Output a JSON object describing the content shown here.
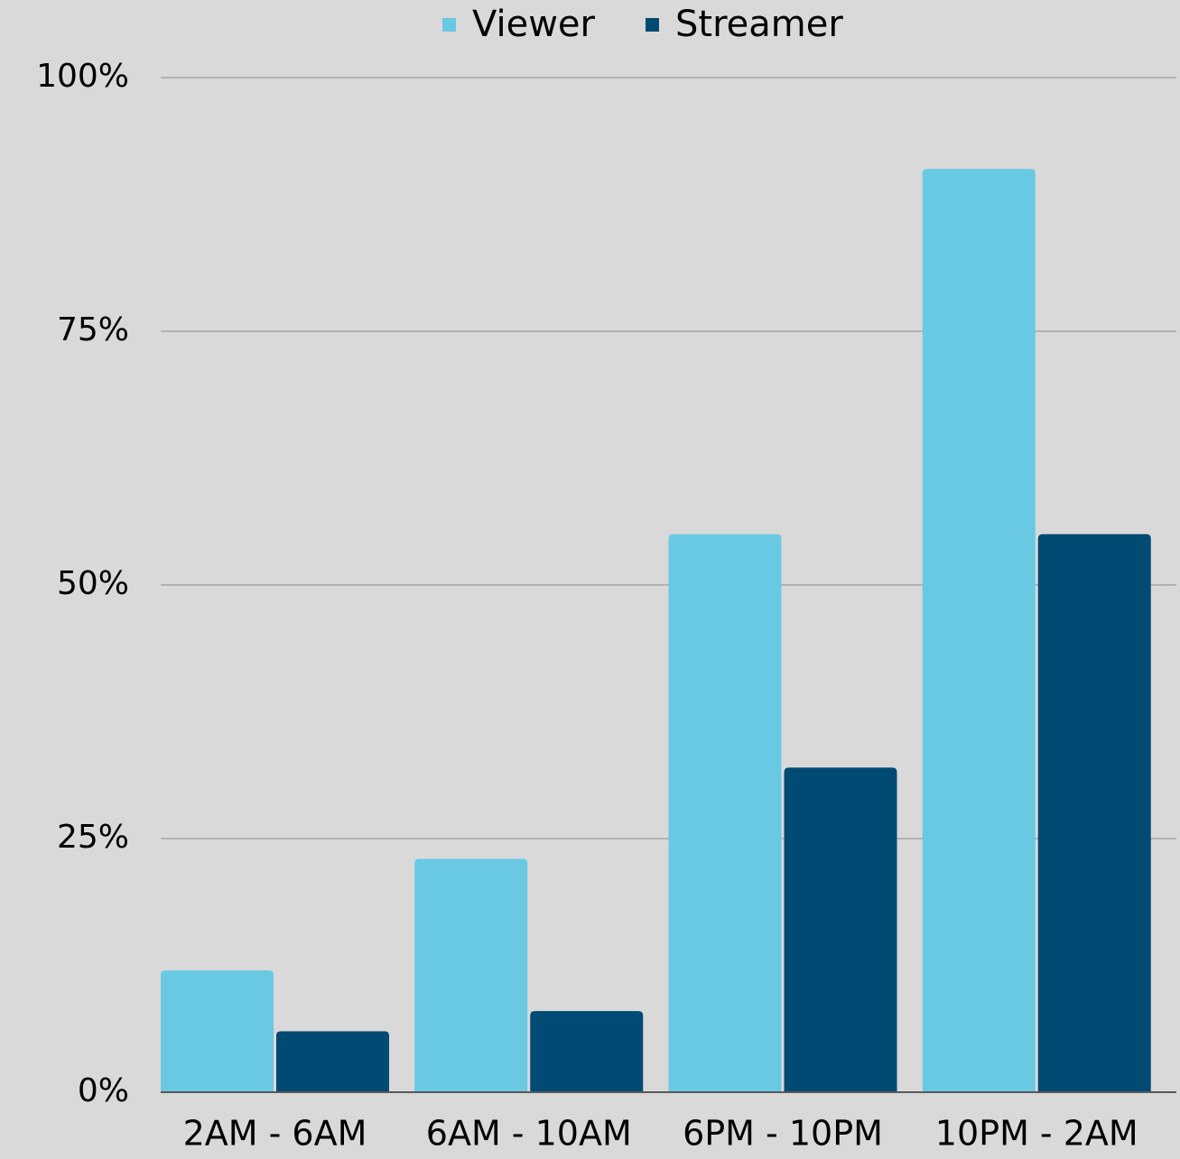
{
  "chart_data": {
    "type": "bar",
    "categories": [
      "2AM - 6AM",
      "6AM - 10AM",
      "6PM - 10PM",
      "10PM - 2AM"
    ],
    "series": [
      {
        "name": "Viewer",
        "color": "#69c9e3",
        "values": [
          12,
          23,
          55,
          91
        ]
      },
      {
        "name": "Streamer",
        "color": "#004a73",
        "values": [
          6,
          8,
          32,
          55
        ]
      }
    ],
    "ylim": [
      0,
      100
    ],
    "yticks": [
      {
        "value": 0,
        "label": "0%"
      },
      {
        "value": 25,
        "label": "25%"
      },
      {
        "value": 50,
        "label": "50%"
      },
      {
        "value": 75,
        "label": "75%"
      },
      {
        "value": 100,
        "label": "100%"
      }
    ],
    "grid": true,
    "legend": "top"
  }
}
